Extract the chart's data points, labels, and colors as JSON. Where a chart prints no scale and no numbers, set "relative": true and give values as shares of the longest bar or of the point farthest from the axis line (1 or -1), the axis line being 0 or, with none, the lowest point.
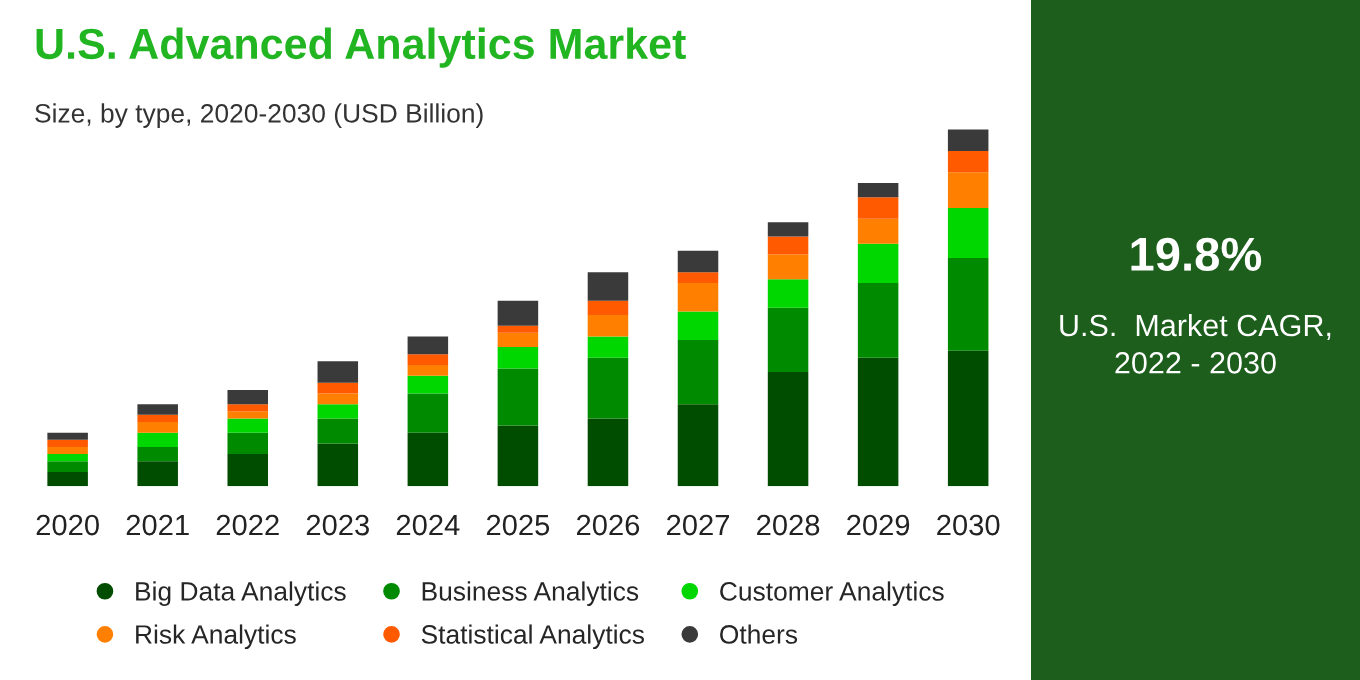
{
  "chart_data": [
    {
      "type": "bar",
      "title": "U.S. Advanced Analytics Market",
      "subtitle": "Size, by type, 2020-2030 (USD Billion)",
      "relative": true,
      "stacked": true,
      "legend": "bottom",
      "marker": "circle",
      "categories": [
        "2020",
        "2021",
        "2022",
        "2023",
        "2024",
        "2025",
        "2026",
        "2027",
        "2028",
        "2029",
        "2030"
      ],
      "series": [
        {
          "name": "Big Data Analytics",
          "color": "#004d00",
          "values": [
            0.04,
            0.07,
            0.09,
            0.12,
            0.15,
            0.17,
            0.19,
            0.23,
            0.32,
            0.36,
            0.38
          ]
        },
        {
          "name": "Business Analytics",
          "color": "#008a00",
          "values": [
            0.03,
            0.04,
            0.06,
            0.07,
            0.11,
            0.16,
            0.17,
            0.18,
            0.18,
            0.21,
            0.26
          ]
        },
        {
          "name": "Customer Analytics",
          "color": "#00d600",
          "values": [
            0.02,
            0.04,
            0.04,
            0.04,
            0.05,
            0.06,
            0.06,
            0.08,
            0.08,
            0.11,
            0.14
          ]
        },
        {
          "name": "Risk Analytics",
          "color": "#ff8000",
          "values": [
            0.02,
            0.03,
            0.02,
            0.03,
            0.03,
            0.04,
            0.06,
            0.08,
            0.07,
            0.07,
            0.1
          ]
        },
        {
          "name": "Statistical Analytics",
          "color": "#ff5a00",
          "values": [
            0.02,
            0.02,
            0.02,
            0.03,
            0.03,
            0.02,
            0.04,
            0.03,
            0.05,
            0.06,
            0.06
          ]
        },
        {
          "name": "Others",
          "color": "#3a3a3a",
          "values": [
            0.02,
            0.03,
            0.04,
            0.06,
            0.05,
            0.07,
            0.08,
            0.06,
            0.04,
            0.04,
            0.06
          ]
        }
      ]
    },
    {
      "type": "other",
      "color": "#1d5e1d",
      "title": "19.8%",
      "annotations": [
        "U.S.  Market CAGR,\n2022 - 2030"
      ]
    }
  ]
}
